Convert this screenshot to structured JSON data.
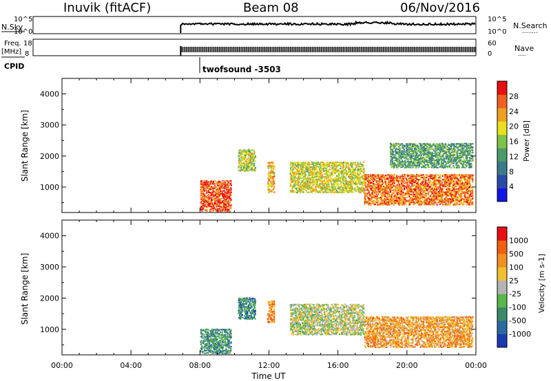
{
  "header": {
    "station": "Inuvik (fitACF)",
    "beam": "Beam 08",
    "date": "06/Nov/2016"
  },
  "noise_panel": {
    "left_label": "N.Sky",
    "left_ticks": [
      "10^5",
      "10^0"
    ],
    "right_ticks": [
      "10^5",
      "10^0"
    ],
    "right_label": "N.Search",
    "legend_dots": "........"
  },
  "freq_panel": {
    "left_label_1": "Freq.",
    "left_label_2": "[MHz]",
    "left_ticks": [
      "18",
      "8"
    ],
    "right_ticks": [
      "60",
      "0"
    ],
    "right_label": "Nave",
    "legend_dots": "...."
  },
  "cpid": {
    "label": "CPID",
    "mode": "twofsound -3503"
  },
  "axes": {
    "ylabel": "Slant Range [km]",
    "yticks": [
      "4000",
      "3000",
      "2000",
      "1000"
    ],
    "xticks": [
      "00:00",
      "04:00",
      "08:00",
      "12:00",
      "16:00",
      "20:00",
      "00:00"
    ],
    "xlabel": "Time UT"
  },
  "chart_data": [
    {
      "type": "heatmap",
      "title": "",
      "xlabel": "Time UT",
      "ylabel": "Slant Range [km]",
      "xlim_hours": [
        0,
        24
      ],
      "ylim_km": [
        180,
        4500
      ],
      "colorbar": {
        "label": "Power [dB]",
        "ticks": [
          "28",
          "24",
          "20",
          "16",
          "12",
          "8",
          "4"
        ],
        "colors": [
          "#1414e6",
          "#2a4aa8",
          "#3a7a8a",
          "#4a9a6a",
          "#7fc24a",
          "#e8e020",
          "#f0a020",
          "#f06020",
          "#e81010"
        ]
      },
      "regions": [
        {
          "t0": 8.0,
          "t1": 9.8,
          "r0": 200,
          "r1": 1200,
          "level": 0.85
        },
        {
          "t0": 10.2,
          "t1": 11.2,
          "r0": 1500,
          "r1": 2200,
          "level": 0.55
        },
        {
          "t0": 11.9,
          "t1": 12.3,
          "r0": 800,
          "r1": 1800,
          "level": 0.7
        },
        {
          "t0": 13.2,
          "t1": 17.5,
          "r0": 800,
          "r1": 1800,
          "level": 0.6
        },
        {
          "t0": 17.5,
          "t1": 23.8,
          "r0": 400,
          "r1": 1400,
          "level": 0.8
        },
        {
          "t0": 19.0,
          "t1": 23.8,
          "r0": 1600,
          "r1": 2400,
          "level": 0.4
        }
      ]
    },
    {
      "type": "heatmap",
      "title": "",
      "xlabel": "Time UT",
      "ylabel": "Slant Range [km]",
      "xlim_hours": [
        0,
        24
      ],
      "ylim_km": [
        180,
        4500
      ],
      "colorbar": {
        "label": "Velocity [m s-1]",
        "ticks": [
          "1000",
          "500",
          "100",
          "25",
          "-25",
          "-100",
          "-500",
          "-1000"
        ],
        "colors": [
          "#1a3ab0",
          "#2a6aa0",
          "#3a8a6a",
          "#5ab84a",
          "#b4b4b4",
          "#f0c030",
          "#f09020",
          "#f06010",
          "#e81010"
        ]
      },
      "regions": [
        {
          "t0": 8.0,
          "t1": 9.8,
          "r0": 200,
          "r1": 1000,
          "level": 0.3
        },
        {
          "t0": 10.2,
          "t1": 11.2,
          "r0": 1300,
          "r1": 2000,
          "level": 0.25
        },
        {
          "t0": 11.9,
          "t1": 12.3,
          "r0": 1200,
          "r1": 1900,
          "level": 0.75
        },
        {
          "t0": 13.2,
          "t1": 17.5,
          "r0": 800,
          "r1": 1800,
          "level": 0.5
        },
        {
          "t0": 17.5,
          "t1": 23.8,
          "r0": 400,
          "r1": 1400,
          "level": 0.7
        }
      ]
    }
  ]
}
